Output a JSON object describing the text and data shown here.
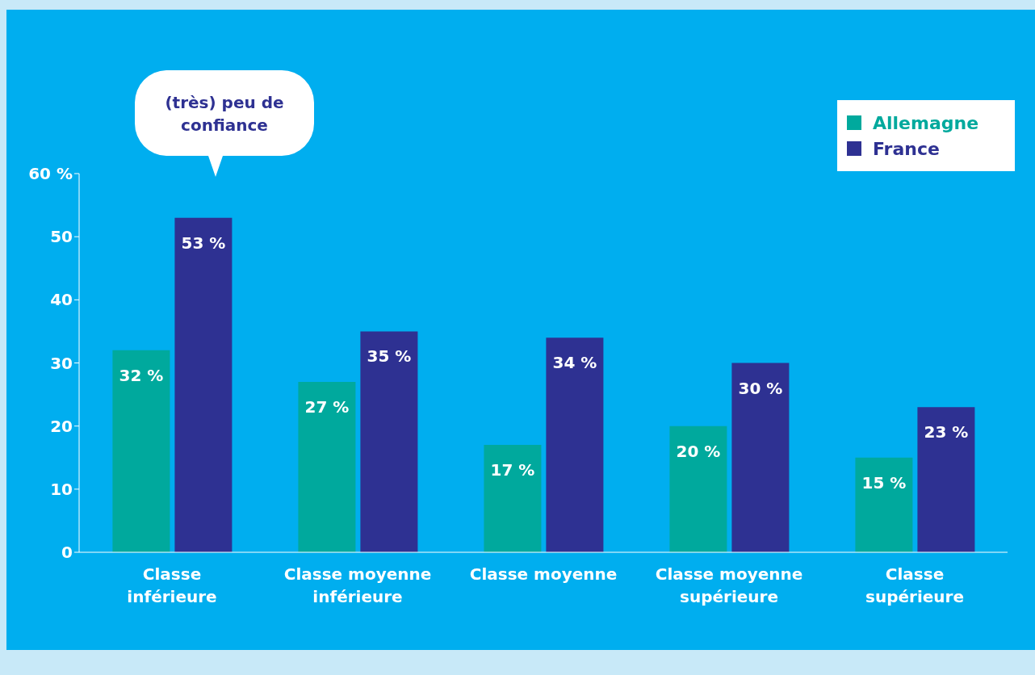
{
  "chart_data": {
    "type": "bar",
    "categories": [
      "Classe inférieure",
      "Classe moyenne inférieure",
      "Classe moyenne",
      "Classe moyenne supérieure",
      "Classe supérieure"
    ],
    "series": [
      {
        "name": "Allemagne",
        "color": "#00a99d",
        "values": [
          32,
          27,
          17,
          20,
          15
        ],
        "value_labels": [
          "32 %",
          "27 %",
          "17 %",
          "20 %",
          "15 %"
        ]
      },
      {
        "name": "France",
        "color": "#2e3192",
        "values": [
          53,
          35,
          34,
          30,
          23
        ],
        "value_labels": [
          "53 %",
          "35 %",
          "34 %",
          "30 %",
          "23 %"
        ]
      }
    ],
    "ylim": [
      0,
      60
    ],
    "yticks": [
      0,
      10,
      20,
      30,
      40,
      50,
      {
        "value": 60,
        "label": "60 %"
      }
    ],
    "legend": "top right",
    "annotations": [
      "(très) peu de confiance"
    ]
  }
}
